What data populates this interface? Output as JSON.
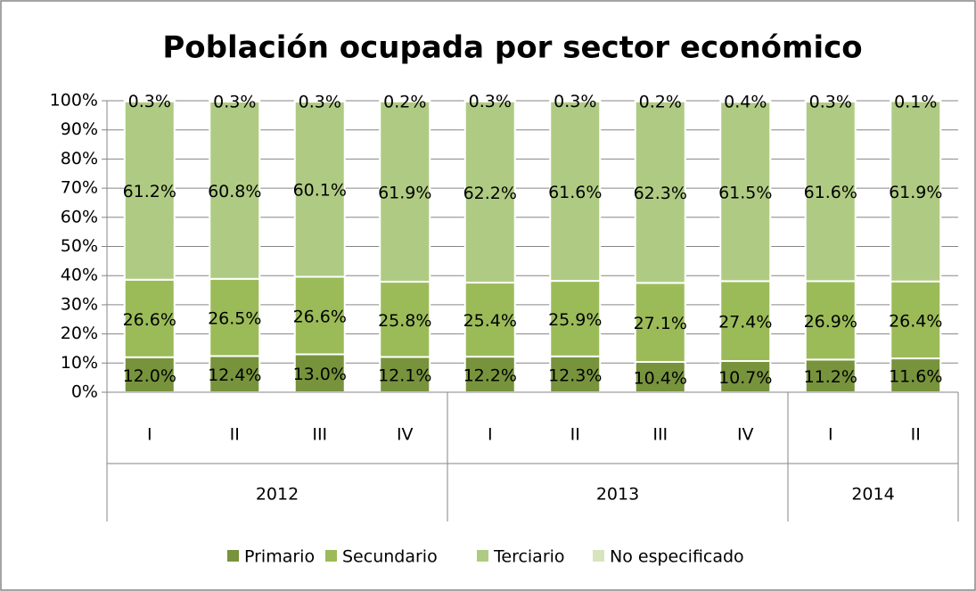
{
  "chart_data": {
    "type": "stacked_bar",
    "title": "Población ocupada por sector económico",
    "categories": [
      "I",
      "II",
      "III",
      "IV",
      "I",
      "II",
      "III",
      "IV",
      "I",
      "II"
    ],
    "groups": [
      {
        "label": "2012",
        "count": 4
      },
      {
        "label": "2013",
        "count": 4
      },
      {
        "label": "2014",
        "count": 2
      }
    ],
    "series": [
      {
        "name": "Primario",
        "color": "#77933c",
        "values": [
          12.0,
          12.4,
          13.0,
          12.1,
          12.2,
          12.3,
          10.4,
          10.7,
          11.2,
          11.6
        ],
        "value_labels": [
          "12.0%",
          "12.4%",
          "13.0%",
          "12.1%",
          "12.2%",
          "12.3%",
          "10.4%",
          "10.7%",
          "11.2%",
          "11.6%"
        ]
      },
      {
        "name": "Secundario",
        "color": "#9bbb59",
        "values": [
          26.6,
          26.5,
          26.6,
          25.8,
          25.4,
          25.9,
          27.1,
          27.4,
          26.9,
          26.4
        ],
        "value_labels": [
          "26.6%",
          "26.5%",
          "26.6%",
          "25.8%",
          "25.4%",
          "25.9%",
          "27.1%",
          "27.4%",
          "26.9%",
          "26.4%"
        ]
      },
      {
        "name": "Terciario",
        "color": "#afcb83",
        "values": [
          61.2,
          60.8,
          60.1,
          61.9,
          62.2,
          61.6,
          62.3,
          61.5,
          61.6,
          61.9
        ],
        "value_labels": [
          "61.2%",
          "60.8%",
          "60.1%",
          "61.9%",
          "62.2%",
          "61.6%",
          "62.3%",
          "61.5%",
          "61.6%",
          "61.9%"
        ]
      },
      {
        "name": "No especificado",
        "color": "#d7e4bd",
        "values": [
          0.3,
          0.3,
          0.3,
          0.2,
          0.3,
          0.3,
          0.2,
          0.4,
          0.3,
          0.1
        ],
        "value_labels": [
          "0.3%",
          "0.3%",
          "0.3%",
          "0.2%",
          "0.3%",
          "0.3%",
          "0.2%",
          "0.4%",
          "0.3%",
          "0.1%"
        ]
      }
    ],
    "ylim": [
      0,
      100
    ],
    "yticks": [
      {
        "value": 0,
        "label": "0%"
      },
      {
        "value": 10,
        "label": "10%"
      },
      {
        "value": 20,
        "label": "20%"
      },
      {
        "value": 30,
        "label": "30%"
      },
      {
        "value": 40,
        "label": "40%"
      },
      {
        "value": 50,
        "label": "50%"
      },
      {
        "value": 60,
        "label": "60%"
      },
      {
        "value": 70,
        "label": "70%"
      },
      {
        "value": 80,
        "label": "80%"
      },
      {
        "value": 90,
        "label": "90%"
      },
      {
        "value": 100,
        "label": "100%"
      }
    ],
    "grid": true,
    "legend": "bottom"
  }
}
